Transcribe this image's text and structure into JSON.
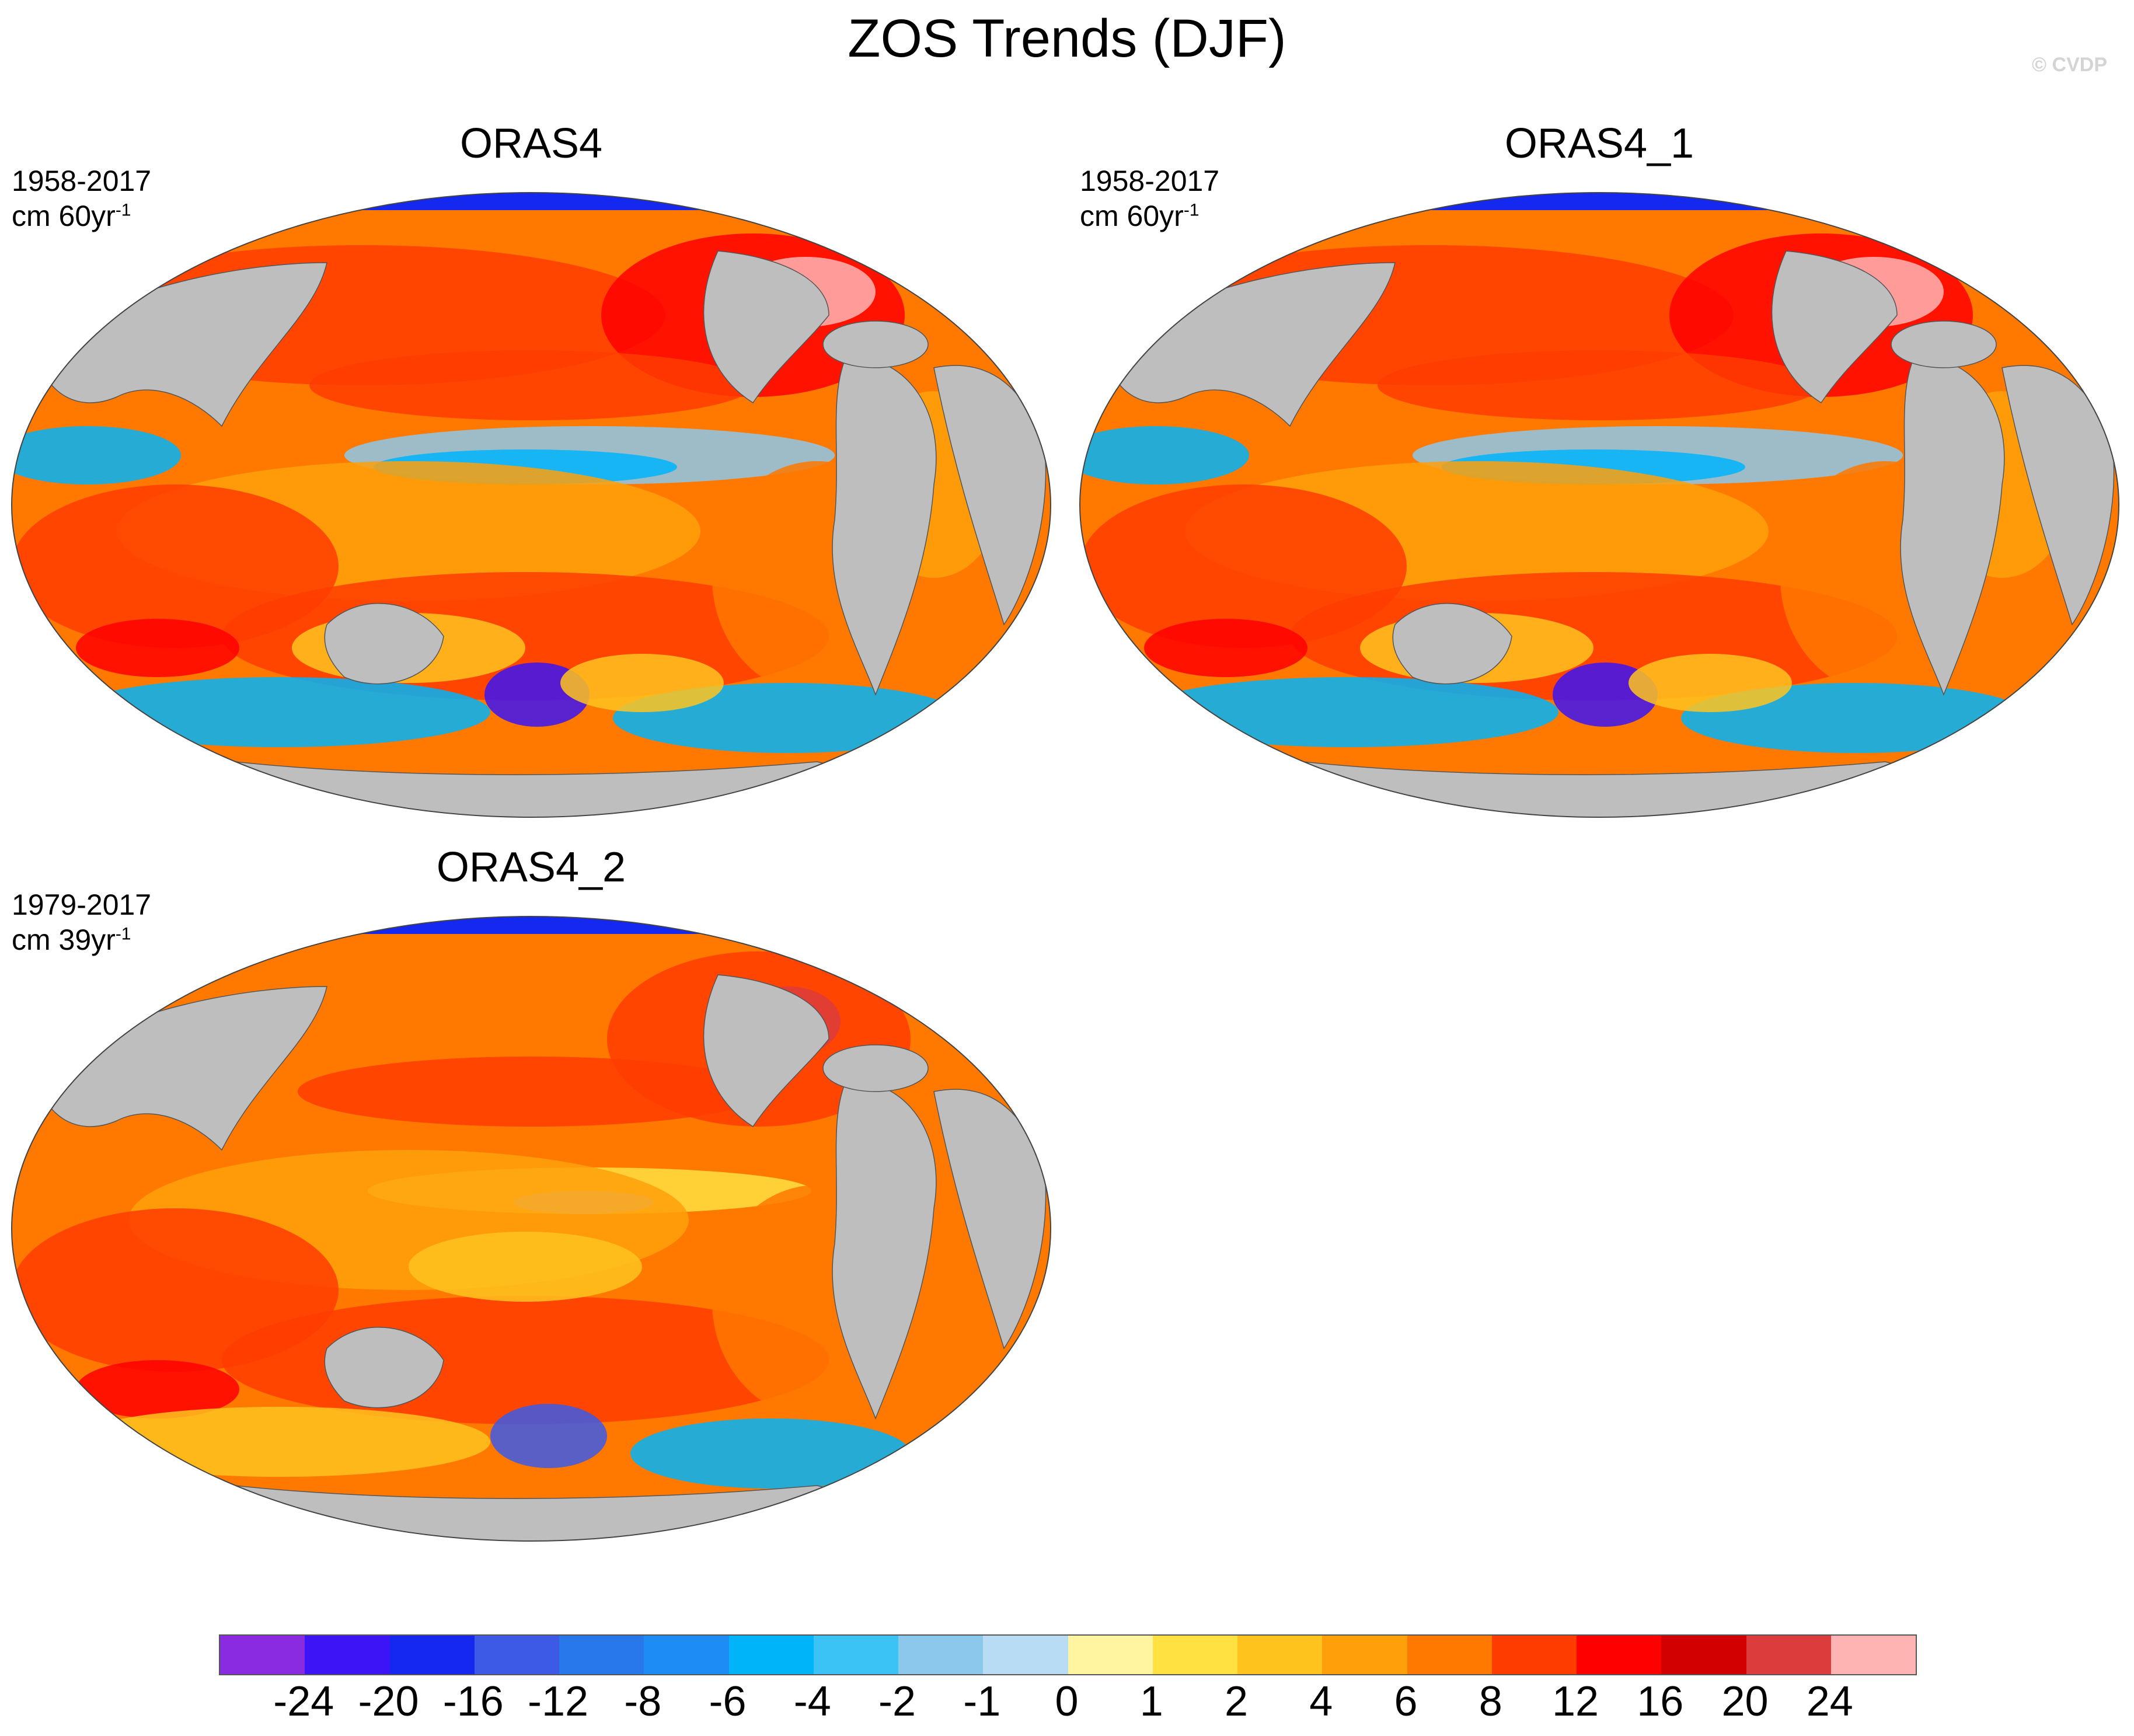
{
  "title": "ZOS Trends (DJF)",
  "watermark": "© CVDP",
  "panels": [
    {
      "title": "ORAS4",
      "period": "1958-2017",
      "units": "cm 60yr",
      "units_exp": "-1"
    },
    {
      "title": "ORAS4_1",
      "period": "1958-2017",
      "units": "cm 60yr",
      "units_exp": "-1"
    },
    {
      "title": "ORAS4_2",
      "period": "1979-2017",
      "units": "cm 39yr",
      "units_exp": "-1"
    }
  ],
  "colorbar": {
    "colors": [
      "#8a2be2",
      "#3c14f5",
      "#1428f0",
      "#3c5ae6",
      "#2878eb",
      "#1e8cf5",
      "#00b4fa",
      "#3cc3f5",
      "#8cc8eb",
      "#b9dcf5",
      "#fff5a0",
      "#ffe141",
      "#ffc31e",
      "#ffa00a",
      "#ff7800",
      "#ff3c00",
      "#ff0000",
      "#d20000",
      "#dc3c3c",
      "#ffb4b4"
    ],
    "labels": [
      "-24",
      "-20",
      "-16",
      "-12",
      "-8",
      "-6",
      "-4",
      "-2",
      "-1",
      "0",
      "1",
      "2",
      "4",
      "6",
      "8",
      "12",
      "16",
      "20",
      "24"
    ]
  },
  "legend_colors": {
    "land": "#bebebe",
    "ocean_base": "#ff8c00",
    "ice": "#ffffff"
  }
}
